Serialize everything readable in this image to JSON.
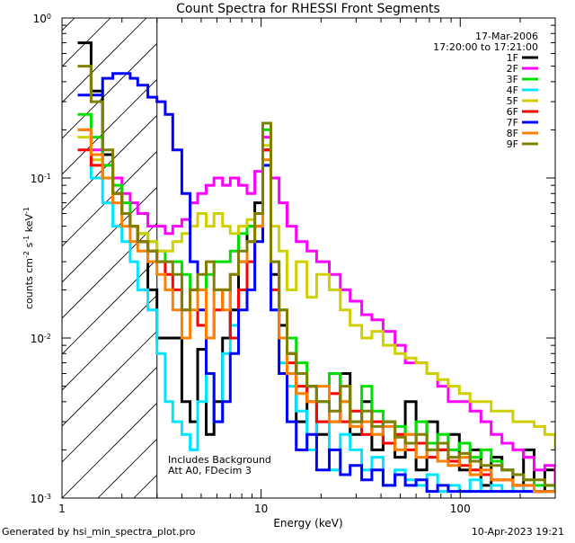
{
  "chart_data": {
    "type": "line",
    "title": "Count Spectra for RHESSI Front Segments",
    "xlabel": "Energy (keV)",
    "ylabel": "counts cm^-2 s^-1 keV^-1",
    "ylabel_parts": {
      "base": "counts cm",
      "exp1": "-2",
      "mid": " s",
      "exp2": "-1",
      "end": " keV",
      "exp3": "-1"
    },
    "x_scale": "log",
    "y_scale": "log",
    "xlim": [
      1,
      300
    ],
    "ylim": [
      0.001,
      1
    ],
    "x_ticks": [
      {
        "value": 1,
        "label": "1"
      },
      {
        "value": 10,
        "label": "10"
      },
      {
        "value": 100,
        "label": "100"
      }
    ],
    "y_ticks": [
      {
        "value": 0.001,
        "base": "10",
        "exp": "-3"
      },
      {
        "value": 0.01,
        "base": "10",
        "exp": "-2"
      },
      {
        "value": 0.1,
        "base": "10",
        "exp": "-1"
      },
      {
        "value": 1,
        "base": "10",
        "exp": "0"
      }
    ],
    "date": "17-Mar-2006",
    "time_range": "17:20:00 to 17:21:00",
    "annotations": [
      "Includes Background",
      "Att A0, FDecim 3"
    ],
    "shaded_region": {
      "from": 1,
      "to": 3,
      "style": "diagonal hatch"
    },
    "series": [
      {
        "name": "1F",
        "color": "#000000",
        "x": [
          1.2,
          1.4,
          1.6,
          1.8,
          2.0,
          2.2,
          2.4,
          2.7,
          3.0,
          3.3,
          3.6,
          4.0,
          4.4,
          4.8,
          5.3,
          5.8,
          6.4,
          7.0,
          7.7,
          8.5,
          9.3,
          10.2,
          11.2,
          12.3,
          13.5,
          15,
          17,
          19,
          22,
          25,
          28,
          32,
          36,
          41,
          47,
          53,
          60,
          68,
          77,
          87,
          99,
          112,
          127,
          143,
          162,
          184,
          208,
          235,
          266,
          300
        ],
        "y": [
          0.7,
          0.35,
          0.14,
          0.08,
          0.06,
          0.05,
          0.04,
          0.02,
          0.01,
          0.01,
          0.01,
          0.004,
          0.003,
          0.0085,
          0.0025,
          0.004,
          0.01,
          0.015,
          0.03,
          0.05,
          0.07,
          0.15,
          0.025,
          0.012,
          0.008,
          0.003,
          0.005,
          0.0025,
          0.003,
          0.006,
          0.0025,
          0.004,
          0.002,
          0.003,
          0.0018,
          0.004,
          0.0015,
          0.003,
          0.002,
          0.0025,
          0.0015,
          0.002,
          0.0012,
          0.0018,
          0.0015,
          0.0012,
          0.002,
          0.0011,
          0.0015,
          0.0012
        ]
      },
      {
        "name": "2F",
        "color": "#ff00ff",
        "x": [
          1.2,
          1.4,
          1.6,
          1.8,
          2.0,
          2.2,
          2.4,
          2.7,
          3.0,
          3.3,
          3.6,
          4.0,
          4.4,
          4.8,
          5.3,
          5.8,
          6.4,
          7.0,
          7.7,
          8.5,
          9.3,
          10.2,
          11.2,
          12.3,
          13.5,
          15,
          17,
          19,
          22,
          25,
          28,
          32,
          36,
          41,
          47,
          53,
          60,
          68,
          77,
          87,
          99,
          112,
          127,
          143,
          162,
          184,
          208,
          235,
          266,
          300
        ],
        "y": [
          0.2,
          0.15,
          0.12,
          0.1,
          0.08,
          0.07,
          0.06,
          0.05,
          0.05,
          0.045,
          0.05,
          0.055,
          0.07,
          0.08,
          0.09,
          0.1,
          0.09,
          0.1,
          0.09,
          0.08,
          0.11,
          0.18,
          0.1,
          0.07,
          0.05,
          0.04,
          0.035,
          0.03,
          0.025,
          0.02,
          0.017,
          0.014,
          0.013,
          0.011,
          0.009,
          0.007,
          0.007,
          0.006,
          0.005,
          0.004,
          0.004,
          0.0035,
          0.003,
          0.0025,
          0.0022,
          0.002,
          0.0018,
          0.0015,
          0.0016,
          0.0012
        ]
      },
      {
        "name": "3F",
        "color": "#00e000",
        "x": [
          1.2,
          1.4,
          1.6,
          1.8,
          2.0,
          2.2,
          2.4,
          2.7,
          3.0,
          3.3,
          3.6,
          4.0,
          4.4,
          4.8,
          5.3,
          5.8,
          6.4,
          7.0,
          7.7,
          8.5,
          9.3,
          10.2,
          11.2,
          12.3,
          13.5,
          15,
          17,
          19,
          22,
          25,
          28,
          32,
          36,
          41,
          47,
          53,
          60,
          68,
          77,
          87,
          99,
          112,
          127,
          143,
          162,
          184,
          208,
          235,
          266,
          300
        ],
        "y": [
          0.25,
          0.18,
          0.12,
          0.09,
          0.07,
          0.05,
          0.045,
          0.04,
          0.035,
          0.03,
          0.03,
          0.025,
          0.02,
          0.02,
          0.025,
          0.03,
          0.03,
          0.035,
          0.045,
          0.05,
          0.06,
          0.2,
          0.03,
          0.015,
          0.01,
          0.007,
          0.005,
          0.004,
          0.006,
          0.004,
          0.003,
          0.005,
          0.0035,
          0.003,
          0.0028,
          0.0025,
          0.003,
          0.0022,
          0.0025,
          0.002,
          0.0022,
          0.0018,
          0.002,
          0.0017,
          0.0015,
          0.0014,
          0.0013,
          0.0012,
          0.0012,
          0.0011
        ]
      },
      {
        "name": "4F",
        "color": "#00e5ff",
        "x": [
          1.2,
          1.4,
          1.6,
          1.8,
          2.0,
          2.2,
          2.4,
          2.7,
          3.0,
          3.3,
          3.6,
          4.0,
          4.4,
          4.8,
          5.3,
          5.8,
          6.4,
          7.0,
          7.7,
          8.5,
          9.3,
          10.2,
          11.2,
          12.3,
          13.5,
          15,
          17,
          19,
          22,
          25,
          28,
          32,
          36,
          41,
          47,
          53,
          60,
          68,
          77,
          87,
          99,
          112,
          127,
          143,
          162,
          184,
          208,
          235,
          266,
          300
        ],
        "y": [
          0.2,
          0.1,
          0.07,
          0.05,
          0.04,
          0.03,
          0.02,
          0.015,
          0.008,
          0.004,
          0.003,
          0.0025,
          0.002,
          0.004,
          0.006,
          0.003,
          0.008,
          0.012,
          0.02,
          0.04,
          0.05,
          0.12,
          0.015,
          0.007,
          0.005,
          0.0035,
          0.002,
          0.003,
          0.0015,
          0.0025,
          0.002,
          0.0015,
          0.0018,
          0.0012,
          0.0015,
          0.0013,
          0.0012,
          0.0014,
          0.0011,
          0.0012,
          0.0011,
          0.0013,
          0.0011,
          0.0012,
          0.0011,
          0.0012,
          0.0011,
          0.0011,
          0.0011,
          0.0011
        ]
      },
      {
        "name": "5F",
        "color": "#d0d000",
        "x": [
          1.2,
          1.4,
          1.6,
          1.8,
          2.0,
          2.2,
          2.4,
          2.7,
          3.0,
          3.3,
          3.6,
          4.0,
          4.4,
          4.8,
          5.3,
          5.8,
          6.4,
          7.0,
          7.7,
          8.5,
          9.3,
          10.2,
          11.2,
          12.3,
          13.5,
          15,
          17,
          19,
          22,
          25,
          28,
          32,
          36,
          41,
          47,
          53,
          60,
          68,
          77,
          87,
          99,
          112,
          127,
          143,
          162,
          184,
          208,
          235,
          266,
          300
        ],
        "y": [
          0.18,
          0.13,
          0.1,
          0.08,
          0.06,
          0.05,
          0.045,
          0.04,
          0.035,
          0.035,
          0.04,
          0.045,
          0.05,
          0.06,
          0.05,
          0.06,
          0.05,
          0.045,
          0.05,
          0.055,
          0.06,
          0.16,
          0.05,
          0.035,
          0.02,
          0.03,
          0.018,
          0.025,
          0.02,
          0.015,
          0.012,
          0.01,
          0.011,
          0.009,
          0.008,
          0.0075,
          0.007,
          0.006,
          0.0055,
          0.005,
          0.0045,
          0.004,
          0.004,
          0.0035,
          0.0035,
          0.003,
          0.003,
          0.0028,
          0.0025,
          0.002
        ]
      },
      {
        "name": "6F",
        "color": "#ff0000",
        "x": [
          1.2,
          1.4,
          1.6,
          1.8,
          2.0,
          2.2,
          2.4,
          2.7,
          3.0,
          3.3,
          3.6,
          4.0,
          4.4,
          4.8,
          5.3,
          5.8,
          6.4,
          7.0,
          7.7,
          8.5,
          9.3,
          10.2,
          11.2,
          12.3,
          13.5,
          15,
          17,
          19,
          22,
          25,
          28,
          32,
          36,
          41,
          47,
          53,
          60,
          68,
          77,
          87,
          99,
          112,
          127,
          143,
          162,
          184,
          208,
          235,
          266,
          300
        ],
        "y": [
          0.15,
          0.12,
          0.1,
          0.08,
          0.06,
          0.05,
          0.04,
          0.035,
          0.03,
          0.025,
          0.02,
          0.015,
          0.02,
          0.012,
          0.01,
          0.015,
          0.02,
          0.01,
          0.02,
          0.03,
          0.05,
          0.15,
          0.02,
          0.01,
          0.007,
          0.005,
          0.004,
          0.003,
          0.0045,
          0.003,
          0.0035,
          0.0025,
          0.003,
          0.0022,
          0.0025,
          0.002,
          0.0022,
          0.0018,
          0.002,
          0.0017,
          0.0016,
          0.0015,
          0.0014,
          0.0013,
          0.0013,
          0.0012,
          0.0012,
          0.0011,
          0.0011,
          0.0011
        ]
      },
      {
        "name": "7F",
        "color": "#0000ff",
        "x": [
          1.2,
          1.4,
          1.6,
          1.8,
          2.0,
          2.2,
          2.4,
          2.7,
          3.0,
          3.3,
          3.6,
          4.0,
          4.4,
          4.8,
          5.3,
          5.8,
          6.4,
          7.0,
          7.7,
          8.5,
          9.3,
          10.2,
          11.2,
          12.3,
          13.5,
          15,
          17,
          19,
          22,
          25,
          28,
          32,
          36,
          41,
          47,
          53,
          60,
          68,
          77,
          87,
          99,
          112,
          127,
          143,
          162,
          184,
          208,
          235,
          266,
          300
        ],
        "y": [
          0.33,
          0.33,
          0.42,
          0.45,
          0.45,
          0.42,
          0.38,
          0.32,
          0.3,
          0.25,
          0.15,
          0.08,
          0.03,
          0.015,
          0.006,
          0.003,
          0.004,
          0.008,
          0.015,
          0.02,
          0.04,
          0.12,
          0.015,
          0.006,
          0.003,
          0.002,
          0.0025,
          0.0015,
          0.002,
          0.0014,
          0.0016,
          0.0013,
          0.0015,
          0.0012,
          0.0014,
          0.0012,
          0.0013,
          0.0011,
          0.0012,
          0.0011,
          0.0011,
          0.0011,
          0.0011,
          0.0011,
          0.0011,
          0.0011,
          0.0011,
          0.0011,
          0.0011,
          0.0011
        ]
      },
      {
        "name": "8F",
        "color": "#ff8000",
        "x": [
          1.2,
          1.4,
          1.6,
          1.8,
          2.0,
          2.2,
          2.4,
          2.7,
          3.0,
          3.3,
          3.6,
          4.0,
          4.4,
          4.8,
          5.3,
          5.8,
          6.4,
          7.0,
          7.7,
          8.5,
          9.3,
          10.2,
          11.2,
          12.3,
          13.5,
          15,
          17,
          19,
          22,
          25,
          28,
          32,
          36,
          41,
          47,
          53,
          60,
          68,
          77,
          87,
          99,
          112,
          127,
          143,
          162,
          184,
          208,
          235,
          266,
          300
        ],
        "y": [
          0.2,
          0.14,
          0.1,
          0.07,
          0.05,
          0.04,
          0.035,
          0.03,
          0.025,
          0.02,
          0.015,
          0.01,
          0.015,
          0.02,
          0.01,
          0.02,
          0.015,
          0.025,
          0.03,
          0.04,
          0.05,
          0.13,
          0.03,
          0.01,
          0.006,
          0.0045,
          0.004,
          0.005,
          0.003,
          0.004,
          0.0028,
          0.003,
          0.0025,
          0.0028,
          0.002,
          0.0025,
          0.0018,
          0.002,
          0.0017,
          0.0016,
          0.0018,
          0.0014,
          0.0015,
          0.0013,
          0.0013,
          0.0012,
          0.0012,
          0.0011,
          0.0011,
          0.0011
        ]
      },
      {
        "name": "9F",
        "color": "#808000",
        "x": [
          1.2,
          1.4,
          1.6,
          1.8,
          2.0,
          2.2,
          2.4,
          2.7,
          3.0,
          3.3,
          3.6,
          4.0,
          4.4,
          4.8,
          5.3,
          5.8,
          6.4,
          7.0,
          7.7,
          8.5,
          9.3,
          10.2,
          11.2,
          12.3,
          13.5,
          15,
          17,
          19,
          22,
          25,
          28,
          32,
          36,
          41,
          47,
          53,
          60,
          68,
          77,
          87,
          99,
          112,
          127,
          143,
          162,
          184,
          208,
          235,
          266,
          300
        ],
        "y": [
          0.5,
          0.3,
          0.15,
          0.08,
          0.06,
          0.05,
          0.04,
          0.035,
          0.03,
          0.03,
          0.025,
          0.015,
          0.02,
          0.025,
          0.03,
          0.02,
          0.02,
          0.025,
          0.035,
          0.04,
          0.06,
          0.22,
          0.03,
          0.015,
          0.008,
          0.006,
          0.005,
          0.004,
          0.0035,
          0.005,
          0.003,
          0.0035,
          0.0028,
          0.003,
          0.0024,
          0.0022,
          0.0025,
          0.002,
          0.0022,
          0.0018,
          0.0019,
          0.0017,
          0.0016,
          0.0016,
          0.0015,
          0.0014,
          0.0013,
          0.0013,
          0.0012,
          0.0012
        ]
      }
    ]
  },
  "footer": {
    "generated_by": "Generated by hsi_min_spectra_plot.pro",
    "timestamp": "10-Apr-2023 19:21"
  }
}
